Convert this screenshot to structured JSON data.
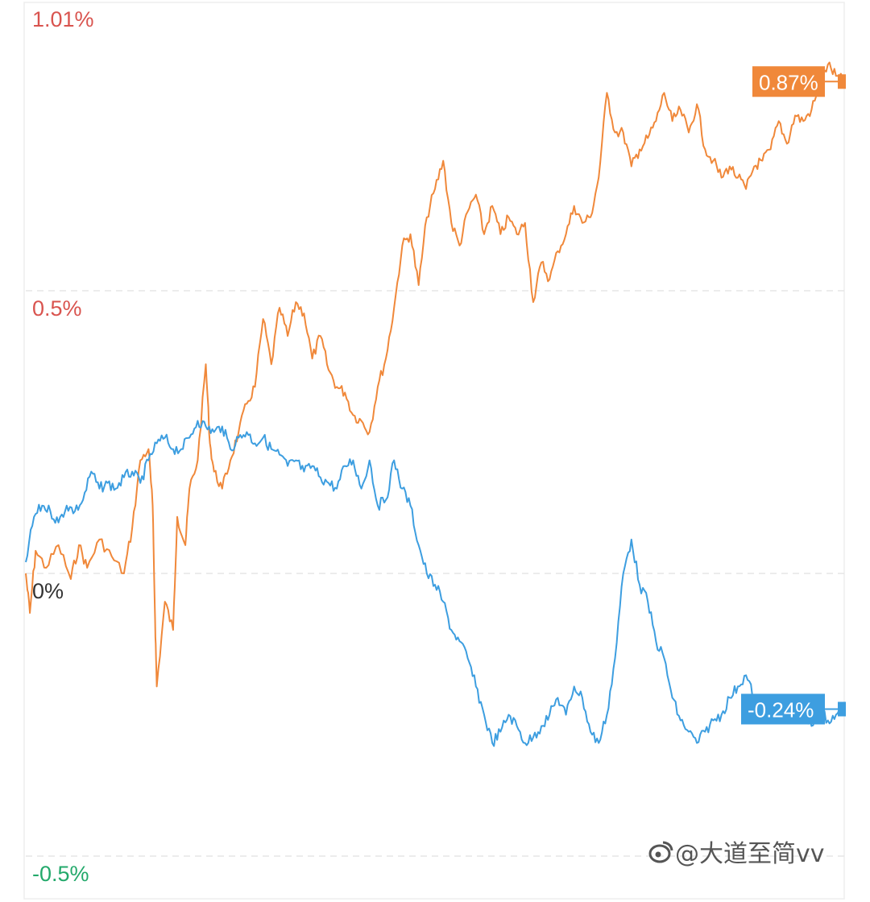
{
  "chart_data": {
    "type": "line",
    "y_unit": "%",
    "ylim": [
      -0.5,
      1.01
    ],
    "y_ticks": [
      {
        "value": 1.01,
        "label": "1.01%",
        "color": "#d9544f"
      },
      {
        "value": 0.5,
        "label": "0.5%",
        "color": "#d9544f"
      },
      {
        "value": 0,
        "label": "0%",
        "color": "#333333"
      },
      {
        "value": -0.5,
        "label": "-0.5%",
        "color": "#23a96b"
      }
    ],
    "grid": true,
    "legend": "none",
    "series": [
      {
        "color": "#f0883a",
        "end_label": "0.87%",
        "points": [
          [
            0,
            0.0
          ],
          [
            0.5,
            -0.07
          ],
          [
            1.2,
            0.04
          ],
          [
            2.5,
            0.01
          ],
          [
            4,
            0.05
          ],
          [
            5.5,
            -0.01
          ],
          [
            6.5,
            0.05
          ],
          [
            7.5,
            0.01
          ],
          [
            9,
            0.06
          ],
          [
            10.5,
            0.03
          ],
          [
            12,
            0.0
          ],
          [
            13,
            0.08
          ],
          [
            14,
            0.2
          ],
          [
            15,
            0.22
          ],
          [
            15.5,
            0.12
          ],
          [
            15.8,
            -0.08
          ],
          [
            16,
            -0.2
          ],
          [
            17,
            -0.05
          ],
          [
            18,
            -0.1
          ],
          [
            18.5,
            0.1
          ],
          [
            19.5,
            0.05
          ],
          [
            20,
            0.15
          ],
          [
            21,
            0.2
          ],
          [
            22,
            0.37
          ],
          [
            22.5,
            0.23
          ],
          [
            23,
            0.18
          ],
          [
            24,
            0.15
          ],
          [
            25,
            0.2
          ],
          [
            26,
            0.25
          ],
          [
            27,
            0.3
          ],
          [
            28,
            0.33
          ],
          [
            29,
            0.45
          ],
          [
            30,
            0.37
          ],
          [
            31,
            0.47
          ],
          [
            32,
            0.42
          ],
          [
            33,
            0.48
          ],
          [
            34,
            0.46
          ],
          [
            35,
            0.38
          ],
          [
            36,
            0.42
          ],
          [
            37,
            0.36
          ],
          [
            38,
            0.33
          ],
          [
            39,
            0.32
          ],
          [
            40,
            0.28
          ],
          [
            41,
            0.27
          ],
          [
            42,
            0.25
          ],
          [
            43,
            0.33
          ],
          [
            44,
            0.38
          ],
          [
            45,
            0.47
          ],
          [
            46,
            0.58
          ],
          [
            47,
            0.6
          ],
          [
            48,
            0.51
          ],
          [
            49,
            0.63
          ],
          [
            50,
            0.68
          ],
          [
            51,
            0.73
          ],
          [
            52,
            0.62
          ],
          [
            53,
            0.58
          ],
          [
            54,
            0.64
          ],
          [
            55,
            0.67
          ],
          [
            56,
            0.6
          ],
          [
            57,
            0.65
          ],
          [
            58,
            0.6
          ],
          [
            59,
            0.63
          ],
          [
            60,
            0.6
          ],
          [
            61,
            0.62
          ],
          [
            62,
            0.48
          ],
          [
            63,
            0.55
          ],
          [
            64,
            0.52
          ],
          [
            65,
            0.57
          ],
          [
            66,
            0.6
          ],
          [
            67,
            0.65
          ],
          [
            68,
            0.62
          ],
          [
            69,
            0.63
          ],
          [
            70,
            0.7
          ],
          [
            71,
            0.85
          ],
          [
            72,
            0.78
          ],
          [
            73,
            0.78
          ],
          [
            74,
            0.72
          ],
          [
            75,
            0.75
          ],
          [
            76,
            0.77
          ],
          [
            77,
            0.8
          ],
          [
            78,
            0.85
          ],
          [
            79,
            0.8
          ],
          [
            80,
            0.82
          ],
          [
            81,
            0.78
          ],
          [
            82,
            0.83
          ],
          [
            83,
            0.75
          ],
          [
            84,
            0.73
          ],
          [
            85,
            0.7
          ],
          [
            86,
            0.72
          ],
          [
            87,
            0.7
          ],
          [
            88,
            0.68
          ],
          [
            89,
            0.72
          ],
          [
            90,
            0.73
          ],
          [
            91,
            0.75
          ],
          [
            92,
            0.8
          ],
          [
            93,
            0.76
          ],
          [
            94,
            0.81
          ],
          [
            95,
            0.8
          ],
          [
            96,
            0.82
          ],
          [
            97,
            0.86
          ],
          [
            98,
            0.9
          ],
          [
            99,
            0.88
          ],
          [
            100,
            0.87
          ]
        ]
      },
      {
        "color": "#3d9ee0",
        "end_label": "-0.24%",
        "points": [
          [
            0,
            0.02
          ],
          [
            1,
            0.1
          ],
          [
            2,
            0.12
          ],
          [
            3,
            0.11
          ],
          [
            4,
            0.09
          ],
          [
            5,
            0.12
          ],
          [
            6,
            0.11
          ],
          [
            7,
            0.13
          ],
          [
            8,
            0.18
          ],
          [
            9,
            0.15
          ],
          [
            10,
            0.16
          ],
          [
            11,
            0.15
          ],
          [
            12,
            0.17
          ],
          [
            13,
            0.18
          ],
          [
            14,
            0.16
          ],
          [
            15,
            0.2
          ],
          [
            16,
            0.23
          ],
          [
            17,
            0.24
          ],
          [
            18,
            0.22
          ],
          [
            19,
            0.22
          ],
          [
            20,
            0.24
          ],
          [
            21,
            0.27
          ],
          [
            22,
            0.26
          ],
          [
            23,
            0.25
          ],
          [
            24,
            0.26
          ],
          [
            25,
            0.22
          ],
          [
            26,
            0.24
          ],
          [
            27,
            0.25
          ],
          [
            28,
            0.23
          ],
          [
            29,
            0.24
          ],
          [
            30,
            0.22
          ],
          [
            31,
            0.21
          ],
          [
            32,
            0.19
          ],
          [
            33,
            0.2
          ],
          [
            34,
            0.18
          ],
          [
            35,
            0.19
          ],
          [
            36,
            0.17
          ],
          [
            37,
            0.16
          ],
          [
            38,
            0.15
          ],
          [
            39,
            0.19
          ],
          [
            40,
            0.2
          ],
          [
            41,
            0.15
          ],
          [
            42,
            0.2
          ],
          [
            43,
            0.12
          ],
          [
            44,
            0.13
          ],
          [
            45,
            0.2
          ],
          [
            46,
            0.15
          ],
          [
            47,
            0.12
          ],
          [
            48,
            0.05
          ],
          [
            49,
            0.0
          ],
          [
            50,
            -0.02
          ],
          [
            51,
            -0.05
          ],
          [
            52,
            -0.1
          ],
          [
            53,
            -0.12
          ],
          [
            54,
            -0.15
          ],
          [
            55,
            -0.2
          ],
          [
            56,
            -0.25
          ],
          [
            57,
            -0.3
          ],
          [
            58,
            -0.28
          ],
          [
            59,
            -0.25
          ],
          [
            60,
            -0.27
          ],
          [
            61,
            -0.3
          ],
          [
            62,
            -0.29
          ],
          [
            63,
            -0.27
          ],
          [
            64,
            -0.25
          ],
          [
            65,
            -0.22
          ],
          [
            66,
            -0.25
          ],
          [
            67,
            -0.2
          ],
          [
            68,
            -0.22
          ],
          [
            69,
            -0.28
          ],
          [
            70,
            -0.3
          ],
          [
            71,
            -0.25
          ],
          [
            72,
            -0.15
          ],
          [
            73,
            -0.0
          ],
          [
            74,
            0.06
          ],
          [
            75,
            -0.02
          ],
          [
            76,
            -0.05
          ],
          [
            77,
            -0.12
          ],
          [
            78,
            -0.15
          ],
          [
            79,
            -0.22
          ],
          [
            80,
            -0.26
          ],
          [
            81,
            -0.28
          ],
          [
            82,
            -0.3
          ],
          [
            83,
            -0.28
          ],
          [
            84,
            -0.26
          ],
          [
            85,
            -0.25
          ],
          [
            86,
            -0.22
          ],
          [
            87,
            -0.2
          ],
          [
            88,
            -0.18
          ],
          [
            89,
            -0.22
          ],
          [
            90,
            -0.26
          ],
          [
            91,
            -0.25
          ],
          [
            92,
            -0.24
          ],
          [
            93,
            -0.26
          ],
          [
            94,
            -0.24
          ],
          [
            95,
            -0.25
          ],
          [
            96,
            -0.27
          ],
          [
            97,
            -0.24
          ],
          [
            98,
            -0.26
          ],
          [
            99,
            -0.25
          ],
          [
            100,
            -0.24
          ]
        ]
      }
    ]
  },
  "watermark": {
    "icon": "weibo-logo-icon",
    "text": "@大道至简vv"
  }
}
